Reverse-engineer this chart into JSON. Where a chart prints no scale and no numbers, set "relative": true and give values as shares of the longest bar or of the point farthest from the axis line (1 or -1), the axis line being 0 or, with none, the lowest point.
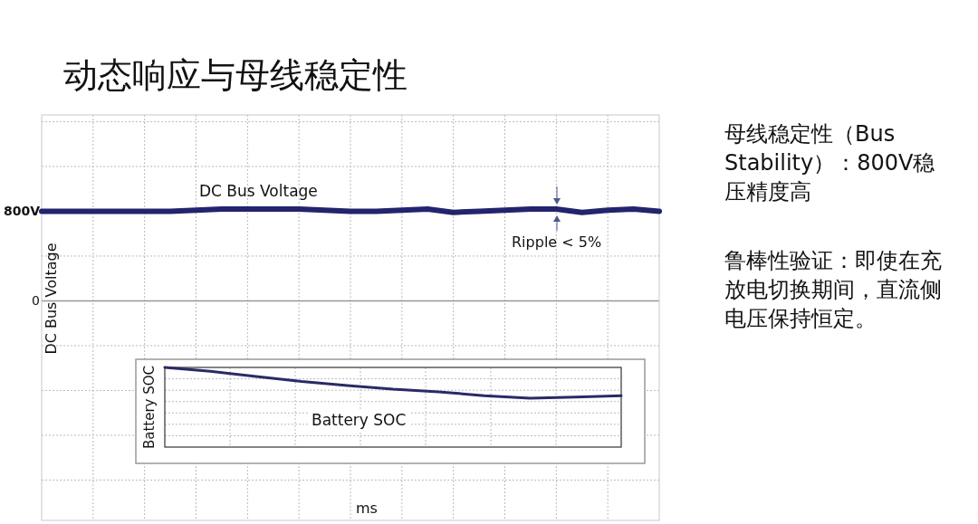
{
  "chart_data": [
    {
      "type": "line",
      "title": "动态响应与母线稳定性",
      "xlabel": "ms",
      "ylabel": "DC Bus Voltage",
      "categories": [
        null,
        null,
        null,
        null,
        null,
        null,
        null,
        null,
        null,
        null,
        null,
        null,
        null,
        null,
        null,
        null,
        null,
        null,
        null,
        null,
        null,
        null,
        null,
        null,
        null
      ],
      "series": [
        {
          "name": "DC Bus Voltage",
          "color": "#23236e",
          "values": [
            800,
            800,
            800,
            800,
            800,
            800,
            810,
            820,
            820,
            820,
            820,
            810,
            800,
            800,
            810,
            820,
            790,
            800,
            810,
            820,
            820,
            790,
            810,
            820,
            800
          ]
        }
      ],
      "ylim": [
        -1960,
        1660
      ],
      "yticks": [
        {
          "value": -1600,
          "label": null
        },
        {
          "value": -1200,
          "label": null
        },
        {
          "value": -800,
          "label": null
        },
        {
          "value": -400,
          "label": null
        },
        0,
        {
          "value": 400,
          "label": null
        },
        {
          "value": 800,
          "label": "800V"
        },
        {
          "value": 1200,
          "label": null
        },
        {
          "value": 1600,
          "label": null
        }
      ],
      "grid": true,
      "line_style": "solid",
      "annotations": [
        "Ripple < 5%",
        "母线稳定性（Bus Stability）：800V稳压精度高",
        "鲁棒性验证：即使在充放电切换期间，直流侧电压保持恒定。"
      ]
    },
    {
      "type": "line",
      "relative": true,
      "ylabel": "Battery SOC",
      "categories": [
        null,
        null,
        null,
        null,
        null,
        null,
        null,
        null,
        null,
        null,
        null
      ],
      "series": [
        {
          "name": "Battery SOC",
          "color": "#2a2a66",
          "values": [
            1,
            0.952,
            0.887,
            0.823,
            0.774,
            0.726,
            0.694,
            0.645,
            0.613,
            0.629,
            0.645
          ]
        }
      ],
      "grid": true,
      "line_style": "solid"
    }
  ]
}
